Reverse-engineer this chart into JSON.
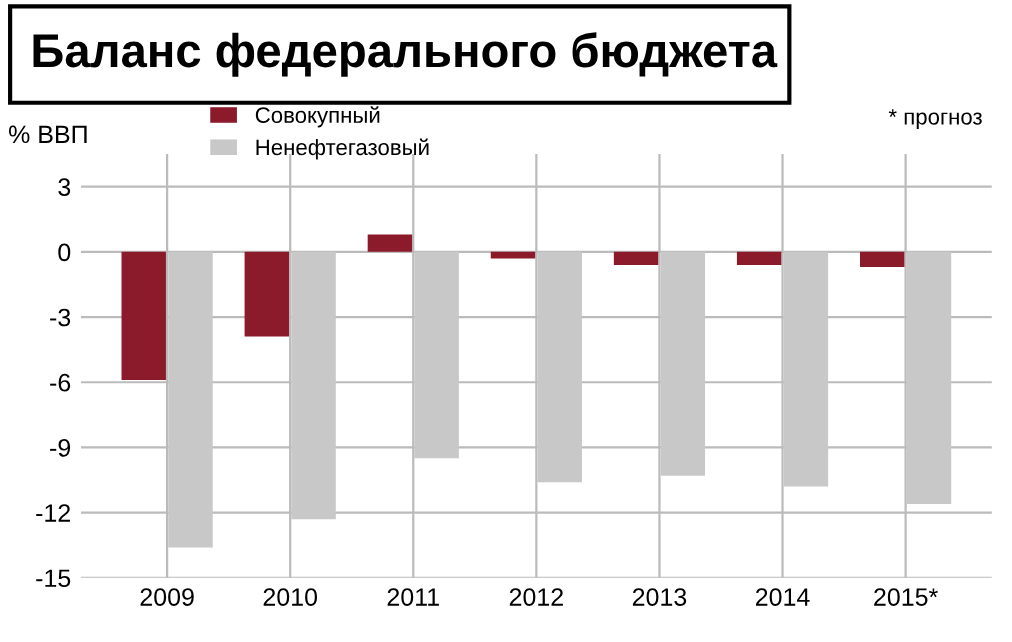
{
  "chart_data": {
    "type": "bar",
    "title": "Баланс федерального бюджета",
    "ylabel": "% ВВП",
    "categories": [
      "2009",
      "2010",
      "2011",
      "2012",
      "2013",
      "2014",
      "2015*"
    ],
    "series": [
      {
        "name": "Совокупный",
        "color": "#8b1a2a",
        "values": [
          -5.9,
          -3.9,
          0.8,
          -0.3,
          -0.6,
          -0.6,
          -0.7
        ]
      },
      {
        "name": "Ненефтегазовый",
        "color": "#c8c8c8",
        "values": [
          -13.6,
          -12.3,
          -9.5,
          -10.6,
          -10.3,
          -10.8,
          -11.6
        ]
      }
    ],
    "ylim": [
      -15,
      4.5
    ],
    "yticks": [
      3,
      0,
      -3,
      -6,
      -9,
      -12,
      -15
    ],
    "grid": true,
    "legend": "top left",
    "annotations": [
      "* прогноз"
    ]
  }
}
